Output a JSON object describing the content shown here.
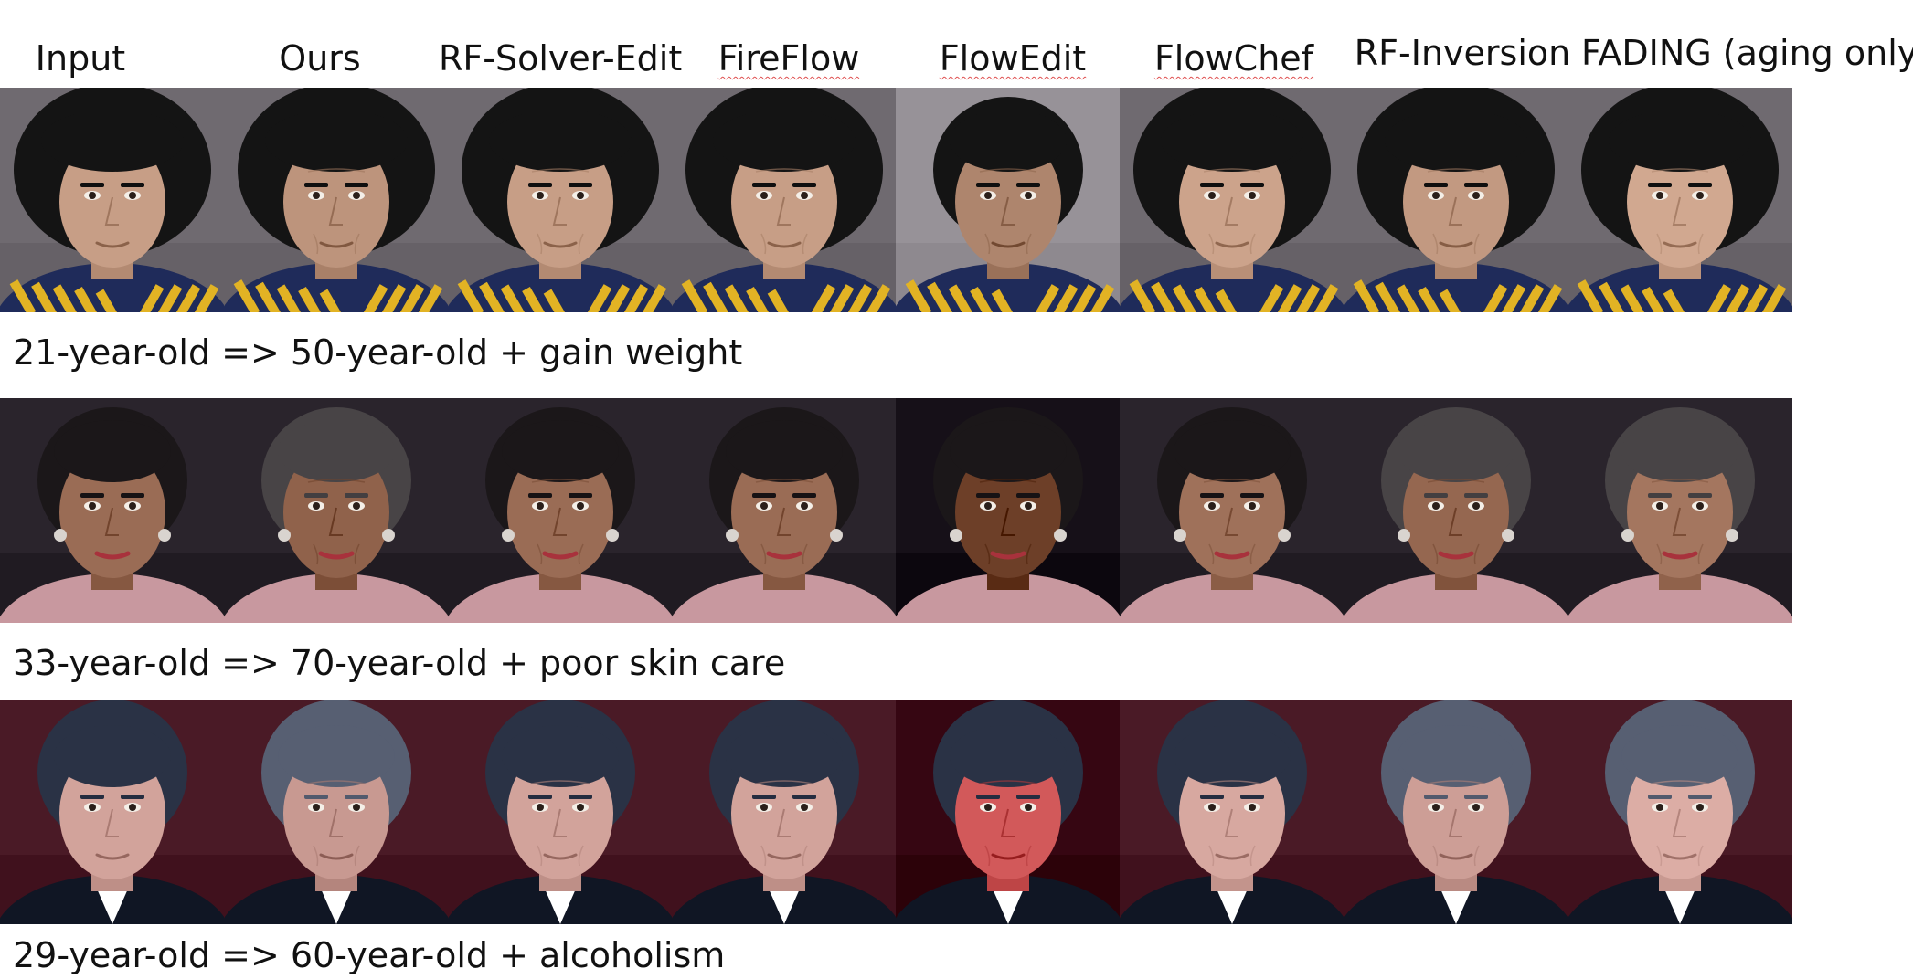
{
  "columns": [
    "Input",
    "Ours",
    "RF-Solver-Edit",
    "FireFlow",
    "FlowEdit",
    "FlowChef",
    "RF-Inversion",
    "FADING (aging only)"
  ],
  "rows": [
    {
      "caption": "21-year-old => 50-year-old + gain weight",
      "bg": "#6f6a70",
      "skin": "#c79e86",
      "hair": "#141414",
      "shirt": "#1f2b5a",
      "accent": "#e2b324"
    },
    {
      "caption": "33-year-old => 70-year-old + poor skin care",
      "bg": "#2a242c",
      "skin": "#9a6c55",
      "hair": "#1b1719",
      "shirt": "#c8989f",
      "accent": "#d9d4cf"
    },
    {
      "caption": "29-year-old => 60-year-old + alcoholism",
      "bg": "#4a1a26",
      "skin": "#d2a39b",
      "hair": "#2a3245",
      "shirt": "#101624",
      "accent": "#ffffff"
    }
  ]
}
